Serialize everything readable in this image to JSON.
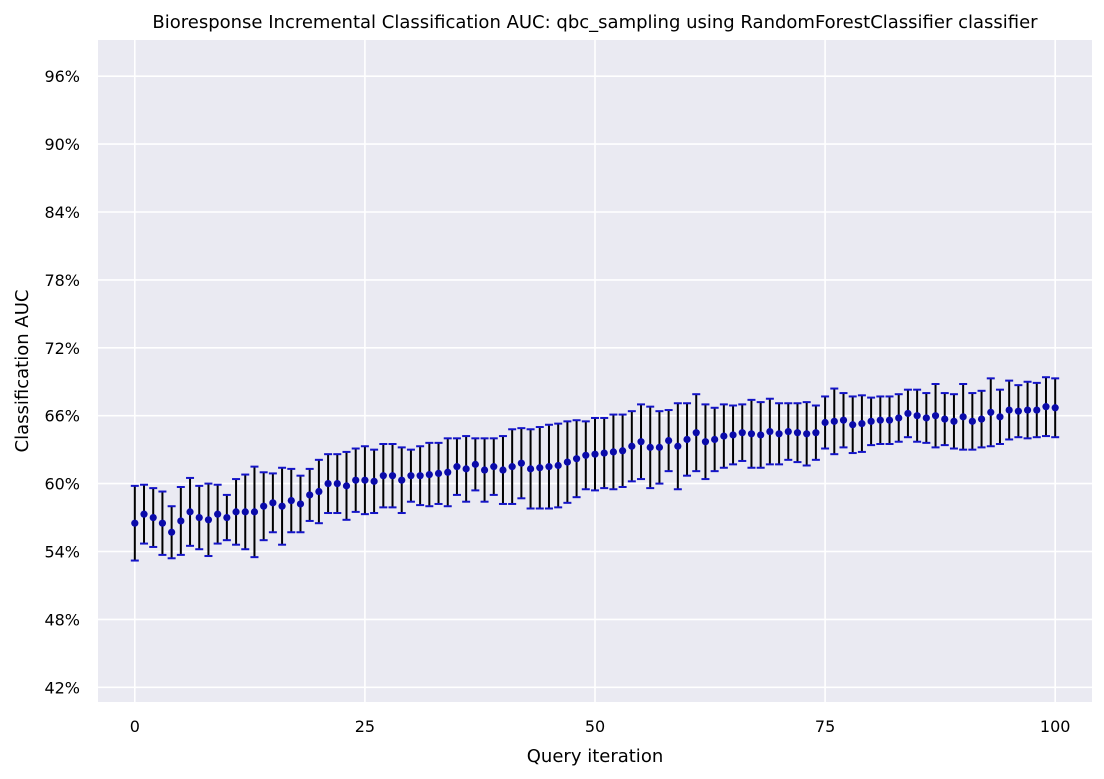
{
  "chart_data": {
    "type": "scatter",
    "title": "Bioresponse Incremental Classification AUC: qbc_sampling using RandomForestClassifier classifier",
    "xlabel": "Query iteration",
    "ylabel": "Classification AUC",
    "xlim": [
      -4,
      104
    ],
    "ylim": [
      40.7,
      99.2
    ],
    "xticks": [
      0,
      25,
      50,
      75,
      100
    ],
    "yticks": [
      42,
      48,
      54,
      60,
      66,
      72,
      78,
      84,
      90,
      96
    ],
    "ytick_format": "percent",
    "grid": true,
    "background": "#eaeaf2",
    "marker_color": "#0a0aaa",
    "errorbar_color": "#000000",
    "cap_color": "#1414c8",
    "x": [
      0,
      1,
      2,
      3,
      4,
      5,
      6,
      7,
      8,
      9,
      10,
      11,
      12,
      13,
      14,
      15,
      16,
      17,
      18,
      19,
      20,
      21,
      22,
      23,
      24,
      25,
      26,
      27,
      28,
      29,
      30,
      31,
      32,
      33,
      34,
      35,
      36,
      37,
      38,
      39,
      40,
      41,
      42,
      43,
      44,
      45,
      46,
      47,
      48,
      49,
      50,
      51,
      52,
      53,
      54,
      55,
      56,
      57,
      58,
      59,
      60,
      61,
      62,
      63,
      64,
      65,
      66,
      67,
      68,
      69,
      70,
      71,
      72,
      73,
      74,
      75,
      76,
      77,
      78,
      79,
      80,
      81,
      82,
      83,
      84,
      85,
      86,
      87,
      88,
      89,
      90,
      91,
      92,
      93,
      94,
      95,
      96,
      97,
      98,
      99,
      100
    ],
    "y": [
      56.5,
      57.3,
      57.0,
      56.5,
      55.7,
      56.7,
      57.5,
      57.0,
      56.8,
      57.3,
      57.0,
      57.5,
      57.5,
      57.5,
      58.0,
      58.3,
      58.0,
      58.5,
      58.2,
      59.0,
      59.3,
      60.0,
      60.0,
      59.8,
      60.3,
      60.3,
      60.2,
      60.7,
      60.7,
      60.3,
      60.7,
      60.7,
      60.8,
      60.9,
      61.0,
      61.5,
      61.3,
      61.7,
      61.2,
      61.5,
      61.2,
      61.5,
      61.8,
      61.3,
      61.4,
      61.5,
      61.6,
      61.9,
      62.2,
      62.5,
      62.6,
      62.7,
      62.8,
      62.9,
      63.3,
      63.7,
      63.2,
      63.2,
      63.8,
      63.3,
      63.9,
      64.5,
      63.7,
      63.9,
      64.2,
      64.3,
      64.5,
      64.4,
      64.3,
      64.6,
      64.4,
      64.6,
      64.5,
      64.4,
      64.5,
      65.4,
      65.5,
      65.6,
      65.2,
      65.3,
      65.5,
      65.6,
      65.6,
      65.8,
      66.2,
      66.0,
      65.8,
      66.0,
      65.7,
      65.5,
      65.9,
      65.5,
      65.7,
      66.3,
      65.9,
      66.5,
      66.4,
      66.5,
      66.5,
      66.8,
      66.7
    ],
    "yerr": [
      3.3,
      2.6,
      2.6,
      2.8,
      2.3,
      3.0,
      3.0,
      2.8,
      3.2,
      2.6,
      2.0,
      2.9,
      3.3,
      4.0,
      3.0,
      2.6,
      3.4,
      2.8,
      2.5,
      2.3,
      2.8,
      2.6,
      2.6,
      3.0,
      2.8,
      3.0,
      2.8,
      2.8,
      2.8,
      2.9,
      2.3,
      2.6,
      2.8,
      2.7,
      3.0,
      2.5,
      2.9,
      2.3,
      2.8,
      2.5,
      3.0,
      3.3,
      3.1,
      3.5,
      3.6,
      3.7,
      3.7,
      3.6,
      3.4,
      3.0,
      3.2,
      3.1,
      3.3,
      3.2,
      3.1,
      3.3,
      3.6,
      3.2,
      2.7,
      3.8,
      3.2,
      3.4,
      3.3,
      2.8,
      2.8,
      2.6,
      2.5,
      3.0,
      2.9,
      2.9,
      2.7,
      2.5,
      2.6,
      2.8,
      2.4,
      2.3,
      2.9,
      2.4,
      2.5,
      2.5,
      2.1,
      2.1,
      2.1,
      2.1,
      2.1,
      2.3,
      2.2,
      2.8,
      2.3,
      2.4,
      2.9,
      2.5,
      2.5,
      3.0,
      2.4,
      2.6,
      2.3,
      2.5,
      2.4,
      2.6,
      2.6
    ]
  }
}
